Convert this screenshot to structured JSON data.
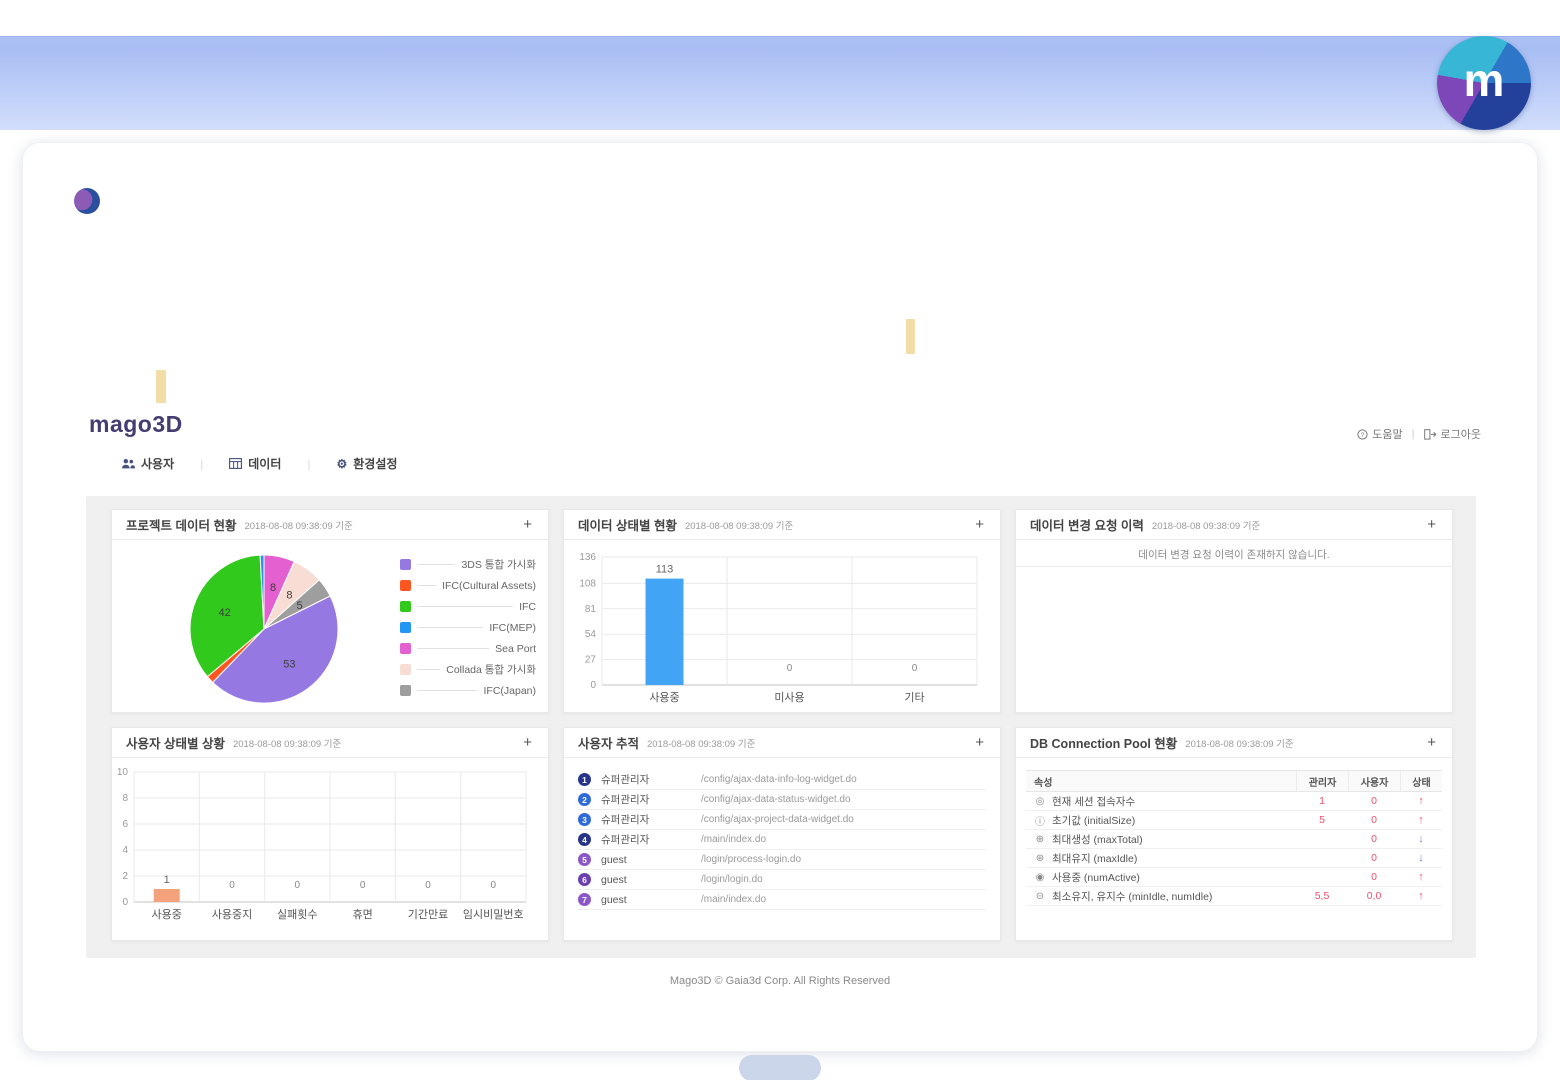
{
  "brand": {
    "logo_letter": "m",
    "name": "mago3D"
  },
  "icons": {
    "gear": "⚙"
  },
  "topbar": {
    "help": "도움말",
    "sep": "|",
    "logout": "로그아웃"
  },
  "nav": {
    "sep": "|",
    "items": [
      {
        "id": "users",
        "label": "사용자"
      },
      {
        "id": "data",
        "label": "데이터"
      },
      {
        "id": "settings",
        "label": "환경설정"
      }
    ]
  },
  "cards": {
    "project": {
      "title": "프로젝트 데이터 현황",
      "date": "2018-08-08 09:38:09 기준",
      "add": "+"
    },
    "data_status": {
      "title": "데이터 상태별 현황",
      "date": "2018-08-08 09:38:09 기준",
      "add": "+"
    },
    "change_request": {
      "title": "데이터 변경 요청 이력",
      "date": "2018-08-08 09:38:09 기준",
      "add": "+",
      "empty": "데이터 변경 요청 이력이 존재하지 않습니다."
    },
    "user_status": {
      "title": "사용자 상태별 상황",
      "date": "2018-08-08 09:38:09 기준",
      "add": "+"
    },
    "user_trace": {
      "title": "사용자 추적",
      "date": "2018-08-08 09:38:09 기준",
      "add": "+",
      "rows": [
        {
          "num": "1",
          "name": "슈퍼관리자",
          "url": "/config/ajax-data-info-log-widget.do",
          "color": "#27348b"
        },
        {
          "num": "2",
          "name": "슈퍼관리자",
          "url": "/config/ajax-data-status-widget.do",
          "color": "#2e6bd9"
        },
        {
          "num": "3",
          "name": "슈퍼관리자",
          "url": "/config/ajax-project-data-widget.do",
          "color": "#2e6bd9"
        },
        {
          "num": "4",
          "name": "슈퍼관리자",
          "url": "/main/index.do",
          "color": "#27348b"
        },
        {
          "num": "5",
          "name": "guest",
          "url": "/login/process-login.do",
          "color": "#8a56c8"
        },
        {
          "num": "6",
          "name": "guest",
          "url": "/login/login.do",
          "color": "#6c3fb0"
        },
        {
          "num": "7",
          "name": "guest",
          "url": "/main/index.do",
          "color": "#8a56c8"
        }
      ]
    },
    "db_pool": {
      "title": "DB Connection Pool 현황",
      "date": "2018-08-08 09:38:09 기준",
      "add": "+",
      "columns": [
        "속성",
        "관리자",
        "사용자",
        "상태"
      ],
      "rows": [
        {
          "icon": "session-count-icon",
          "glyph": "◎",
          "label": "현재 세션 접속자수",
          "admin": "1",
          "user": "0",
          "trend": "up"
        },
        {
          "icon": "initial-size-icon",
          "glyph": "ⓘ",
          "label": "초기값 (initialSize)",
          "admin": "5",
          "user": "0",
          "trend": "up"
        },
        {
          "icon": "max-total-icon",
          "glyph": "⊕",
          "label": "최대생성 (maxTotal)",
          "admin": "",
          "user": "0",
          "trend": "down"
        },
        {
          "icon": "max-idle-icon",
          "glyph": "⊛",
          "label": "최대유지 (maxIdle)",
          "admin": "",
          "user": "0",
          "trend": "down"
        },
        {
          "icon": "num-active-icon",
          "glyph": "◉",
          "label": "사용중 (numActive)",
          "admin": "",
          "user": "0",
          "trend": "up"
        },
        {
          "icon": "min-idle-icon",
          "glyph": "⊝",
          "label": "최소유지, 유지수 (minIdle, numIdle)",
          "admin": "5,5",
          "user": "0,0",
          "trend": "up"
        }
      ],
      "value_color": "#f0506e",
      "up_arrow": "↑",
      "down_arrow": "↓",
      "up_color": "#f0506e",
      "down_color": "#7b87d7"
    }
  },
  "chart_data": [
    {
      "id": "project-data-pie",
      "type": "pie",
      "title": "프로젝트 데이터 현황",
      "slices": [
        {
          "label": "Sea Port",
          "value": 8,
          "color": "#e45fd0"
        },
        {
          "label": "Collada 통합 가시화",
          "value": 8,
          "color": "#f7ddd3"
        },
        {
          "label": "IFC(Japan)",
          "value": 5,
          "color": "#9e9e9e"
        },
        {
          "label": "3DS 통합 가시화",
          "value": 53,
          "color": "#9678e3"
        },
        {
          "label": "IFC(Cultural Assets)",
          "value": 2,
          "color": "#fe5621"
        },
        {
          "label": "IFC",
          "value": 42,
          "color": "#31ca1c"
        },
        {
          "label": "IFC(MEP)",
          "value": 1,
          "color": "#2196f3"
        }
      ],
      "legend": [
        "3DS 통합 가시화",
        "IFC(Cultural Assets)",
        "IFC",
        "IFC(MEP)",
        "Sea Port",
        "Collada 통합 가시화",
        "IFC(Japan)"
      ],
      "legend_position": "right"
    },
    {
      "id": "data-status-bar",
      "type": "bar",
      "title": "데이터 상태별 현황",
      "categories": [
        "사용중",
        "미사용",
        "기타"
      ],
      "values": [
        113,
        0,
        0
      ],
      "bar_color": "#41a4f5",
      "ylim": [
        0,
        136
      ],
      "yticks": [
        0,
        27,
        54,
        81,
        108,
        136
      ],
      "grid": true
    },
    {
      "id": "user-status-bar",
      "type": "bar",
      "title": "사용자 상태별 상황",
      "categories": [
        "사용중",
        "사용중지",
        "실패횟수",
        "휴면",
        "기간만료",
        "임시비밀번호"
      ],
      "values": [
        1,
        0,
        0,
        0,
        0,
        0
      ],
      "bar_color": "#f3a27b",
      "ylim": [
        0,
        10
      ],
      "yticks": [
        0,
        2,
        4,
        6,
        8,
        10
      ],
      "grid": true
    }
  ],
  "footer": {
    "copyright": "Mago3D © Gaia3d Corp. All Rights Reserved"
  }
}
